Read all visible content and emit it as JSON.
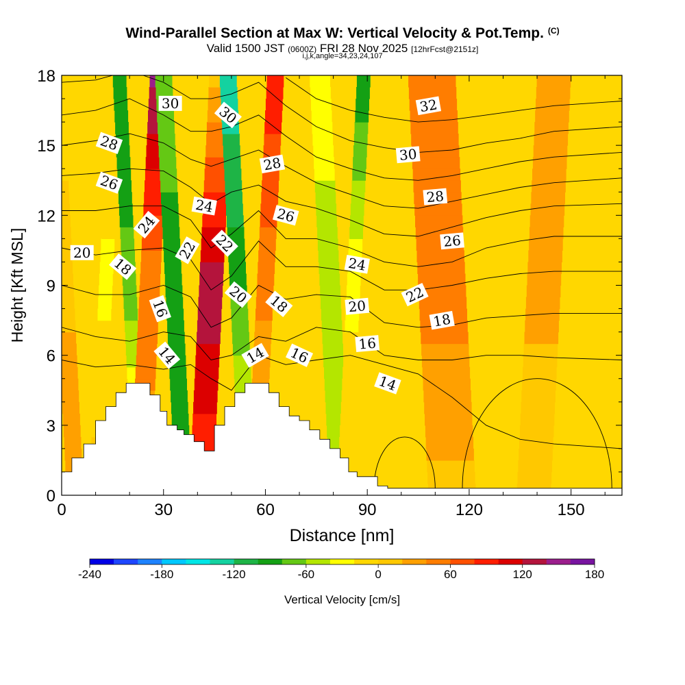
{
  "title": {
    "main": "Wind-Parallel Section at Max W: Vertical Velocity & Pot.Temp.",
    "credit": "(C)",
    "valid_prefix": "Valid 1500 JST",
    "utc": "(0600Z)",
    "valid_date": "FRI 28 Nov 2025",
    "forecast": "[12hrFcst@2151z]",
    "indices": "i,j,k,angle=34,23,24,107"
  },
  "chart_data": {
    "type": "heatmap",
    "title": "Wind-Parallel Section at Max W: Vertical Velocity & Pot.Temp.",
    "xlabel": "Distance [nm]",
    "ylabel": "Height [Kft MSL]",
    "xlim": [
      0,
      165
    ],
    "ylim": [
      0,
      18
    ],
    "x_ticks": [
      0,
      30,
      60,
      90,
      120,
      150
    ],
    "y_ticks": [
      0,
      3,
      6,
      9,
      12,
      15,
      18
    ],
    "colorbar": {
      "label": "Vertical Velocity [cm/s]",
      "tick_labels": [
        -240,
        -180,
        -120,
        -60,
        0,
        60,
        120,
        180
      ],
      "colors": [
        "#0000e6",
        "#1e46ff",
        "#1e82ff",
        "#00c8ff",
        "#00e6e6",
        "#14d2a0",
        "#1eb446",
        "#14a014",
        "#64c814",
        "#b4e600",
        "#ffff00",
        "#ffd700",
        "#ffc800",
        "#ffa000",
        "#ff7d00",
        "#ff5000",
        "#ff1e00",
        "#dc0000",
        "#b4143c",
        "#9b1e8c",
        "#7814a0"
      ]
    },
    "velocity_bands": [
      {
        "x": 1,
        "w": 5,
        "vtop": -15,
        "vmid": 15,
        "vbot": 35
      },
      {
        "x": 13,
        "w": 4,
        "vtop": 0,
        "vmid": -25,
        "vbot": 10
      },
      {
        "x": 20,
        "w": 4,
        "vtop": -95,
        "vmid": -75,
        "vbot": 20
      },
      {
        "x": 26,
        "w": 6,
        "vtop": 145,
        "vmid": 45,
        "vbot": 35
      },
      {
        "x": 33,
        "w": 5,
        "vtop": -60,
        "vmid": -95,
        "vbot": -95
      },
      {
        "x": 44,
        "w": 7,
        "vtop": 10,
        "vmid": 135,
        "vbot": 75
      },
      {
        "x": 52,
        "w": 5,
        "vtop": -135,
        "vmid": -85,
        "vbot": -15
      },
      {
        "x": 60,
        "w": 5,
        "vtop": 95,
        "vmid": 45,
        "vbot": 10
      },
      {
        "x": 79,
        "w": 6,
        "vtop": -25,
        "vmid": -55,
        "vbot": -45
      },
      {
        "x": 86,
        "w": 4,
        "vtop": -95,
        "vmid": -25,
        "vbot": 0
      },
      {
        "x": 112,
        "w": 14,
        "vtop": 40,
        "vmid": 50,
        "vbot": 15
      },
      {
        "x": 142,
        "w": 10,
        "vtop": 30,
        "vmid": 25,
        "vbot": 8
      }
    ],
    "terrain": [
      {
        "x": 0,
        "h": 1.0
      },
      {
        "x": 3,
        "h": 1.6
      },
      {
        "x": 6.5,
        "h": 2.2
      },
      {
        "x": 10,
        "h": 3.2
      },
      {
        "x": 13,
        "h": 3.8
      },
      {
        "x": 16,
        "h": 4.4
      },
      {
        "x": 19,
        "h": 4.8
      },
      {
        "x": 26,
        "h": 4.3
      },
      {
        "x": 29,
        "h": 3.6
      },
      {
        "x": 31,
        "h": 3.0
      },
      {
        "x": 34,
        "h": 2.8
      },
      {
        "x": 36,
        "h": 2.6
      },
      {
        "x": 39,
        "h": 2.3
      },
      {
        "x": 42,
        "h": 1.9
      },
      {
        "x": 45,
        "h": 3.0
      },
      {
        "x": 48,
        "h": 3.8
      },
      {
        "x": 51,
        "h": 4.4
      },
      {
        "x": 54,
        "h": 4.8
      },
      {
        "x": 61,
        "h": 4.4
      },
      {
        "x": 64,
        "h": 3.8
      },
      {
        "x": 67,
        "h": 3.4
      },
      {
        "x": 70,
        "h": 3.2
      },
      {
        "x": 73,
        "h": 2.8
      },
      {
        "x": 76,
        "h": 2.4
      },
      {
        "x": 79,
        "h": 2.0
      },
      {
        "x": 82,
        "h": 1.6
      },
      {
        "x": 84.5,
        "h": 1.0
      },
      {
        "x": 87,
        "h": 0.8
      },
      {
        "x": 93,
        "h": 0.4
      },
      {
        "x": 96,
        "h": 0.3
      },
      {
        "x": 165,
        "h": 0.3
      }
    ],
    "isentropes": [
      {
        "value": 14,
        "y": [
          5.8,
          5.5,
          5.6,
          5.4,
          5.6,
          5.0,
          4.5,
          6.0,
          5.6,
          5.8,
          6.0,
          5.6,
          5.2,
          4.2,
          3.0,
          2.4,
          2.2,
          2.0
        ]
      },
      {
        "value": 16,
        "y": [
          7.2,
          6.8,
          6.6,
          7.0,
          6.8,
          5.8,
          6.0,
          6.8,
          6.6,
          7.2,
          7.0,
          6.0,
          5.8,
          5.8,
          6.0,
          6.0,
          5.9,
          5.8
        ]
      },
      {
        "value": 18,
        "y": [
          9.0,
          8.6,
          8.6,
          9.0,
          8.5,
          7.2,
          7.6,
          9.0,
          8.4,
          8.6,
          8.5,
          7.4,
          7.2,
          7.3,
          7.6,
          7.7,
          7.8,
          7.8
        ]
      },
      {
        "value": 20,
        "y": [
          10.6,
          10.3,
          10.5,
          10.6,
          10.1,
          8.8,
          9.4,
          10.9,
          9.8,
          9.8,
          9.6,
          8.8,
          8.8,
          9.0,
          9.3,
          9.5,
          9.6,
          9.6
        ]
      },
      {
        "value": 22,
        "y": [
          12.2,
          12.2,
          12.4,
          12.4,
          11.8,
          10.6,
          11.2,
          12.2,
          11.0,
          11.0,
          10.6,
          10.0,
          9.8,
          10.0,
          10.6,
          10.9,
          11.1,
          11.1
        ]
      },
      {
        "value": 24,
        "y": [
          13.7,
          13.8,
          14.0,
          13.9,
          13.2,
          12.5,
          13.0,
          13.3,
          12.6,
          12.3,
          11.8,
          11.2,
          11.1,
          11.5,
          11.9,
          12.2,
          12.4,
          12.5
        ]
      },
      {
        "value": 26,
        "y": [
          15.0,
          15.2,
          15.5,
          15.1,
          14.4,
          14.1,
          14.4,
          14.8,
          14.1,
          13.4,
          12.9,
          12.4,
          12.3,
          12.6,
          12.9,
          13.2,
          13.4,
          13.6
        ]
      },
      {
        "value": 28,
        "y": [
          16.3,
          16.5,
          17.0,
          16.3,
          15.6,
          15.6,
          15.8,
          16.3,
          15.4,
          14.5,
          14.0,
          13.6,
          13.5,
          13.7,
          14.0,
          14.3,
          14.5,
          14.7
        ]
      },
      {
        "value": 30,
        "y": [
          17.7,
          17.8,
          18.2,
          17.7,
          17.0,
          17.0,
          17.2,
          17.7,
          16.7,
          15.8,
          15.2,
          14.9,
          14.7,
          14.8,
          15.1,
          15.3,
          15.6,
          15.8
        ]
      },
      {
        "value": 32,
        "y": [
          null,
          null,
          null,
          null,
          null,
          null,
          null,
          null,
          17.9,
          17.0,
          16.5,
          16.2,
          16.0,
          16.1,
          16.3,
          16.5,
          16.7,
          16.9
        ]
      }
    ],
    "isentrope_x": [
      0,
      10,
      20,
      30,
      38,
      44,
      50,
      58,
      66,
      75,
      85,
      95,
      105,
      115,
      125,
      135,
      145,
      165
    ],
    "contour_labels": [
      {
        "text": "14",
        "x": 31,
        "y": 6.0,
        "angle": 50
      },
      {
        "text": "14",
        "x": 57,
        "y": 6.0,
        "angle": -30
      },
      {
        "text": "14",
        "x": 96,
        "y": 4.8,
        "angle": 20
      },
      {
        "text": "16",
        "x": 29,
        "y": 8.0,
        "angle": 70
      },
      {
        "text": "16",
        "x": 70,
        "y": 6.0,
        "angle": 25
      },
      {
        "text": "16",
        "x": 90,
        "y": 6.5,
        "angle": -5
      },
      {
        "text": "18",
        "x": 18,
        "y": 9.8,
        "angle": 40
      },
      {
        "text": "18",
        "x": 64,
        "y": 8.2,
        "angle": 40
      },
      {
        "text": "18",
        "x": 112,
        "y": 7.5,
        "angle": -10
      },
      {
        "text": "20",
        "x": 6,
        "y": 10.4,
        "angle": 0
      },
      {
        "text": "20",
        "x": 52,
        "y": 8.6,
        "angle": 40
      },
      {
        "text": "20",
        "x": 87,
        "y": 8.1,
        "angle": -5
      },
      {
        "text": "22",
        "x": 37,
        "y": 10.5,
        "angle": -60
      },
      {
        "text": "22",
        "x": 48,
        "y": 10.8,
        "angle": 45
      },
      {
        "text": "22",
        "x": 104,
        "y": 8.6,
        "angle": -25
      },
      {
        "text": "24",
        "x": 25,
        "y": 11.6,
        "angle": -50
      },
      {
        "text": "24",
        "x": 42,
        "y": 12.4,
        "angle": 10
      },
      {
        "text": "24",
        "x": 87,
        "y": 9.9,
        "angle": 10
      },
      {
        "text": "26",
        "x": 14,
        "y": 13.4,
        "angle": 20
      },
      {
        "text": "26",
        "x": 66,
        "y": 12.0,
        "angle": 15
      },
      {
        "text": "26",
        "x": 115,
        "y": 10.9,
        "angle": -5
      },
      {
        "text": "28",
        "x": 14,
        "y": 15.1,
        "angle": 20
      },
      {
        "text": "28",
        "x": 62,
        "y": 14.2,
        "angle": -10
      },
      {
        "text": "28",
        "x": 110,
        "y": 12.8,
        "angle": -5
      },
      {
        "text": "30",
        "x": 32,
        "y": 16.8,
        "angle": 0
      },
      {
        "text": "30",
        "x": 49,
        "y": 16.3,
        "angle": 40
      },
      {
        "text": "30",
        "x": 102,
        "y": 14.6,
        "angle": -5
      },
      {
        "text": "32",
        "x": 108,
        "y": 16.7,
        "angle": -10
      }
    ],
    "closed_contours": [
      {
        "cx": 101,
        "cy": 0.3,
        "rx": 9,
        "ry": 2.2,
        "label": ""
      },
      {
        "cx": 140,
        "cy": 0.3,
        "rx": 22,
        "ry": 4.7,
        "label": ""
      }
    ]
  }
}
